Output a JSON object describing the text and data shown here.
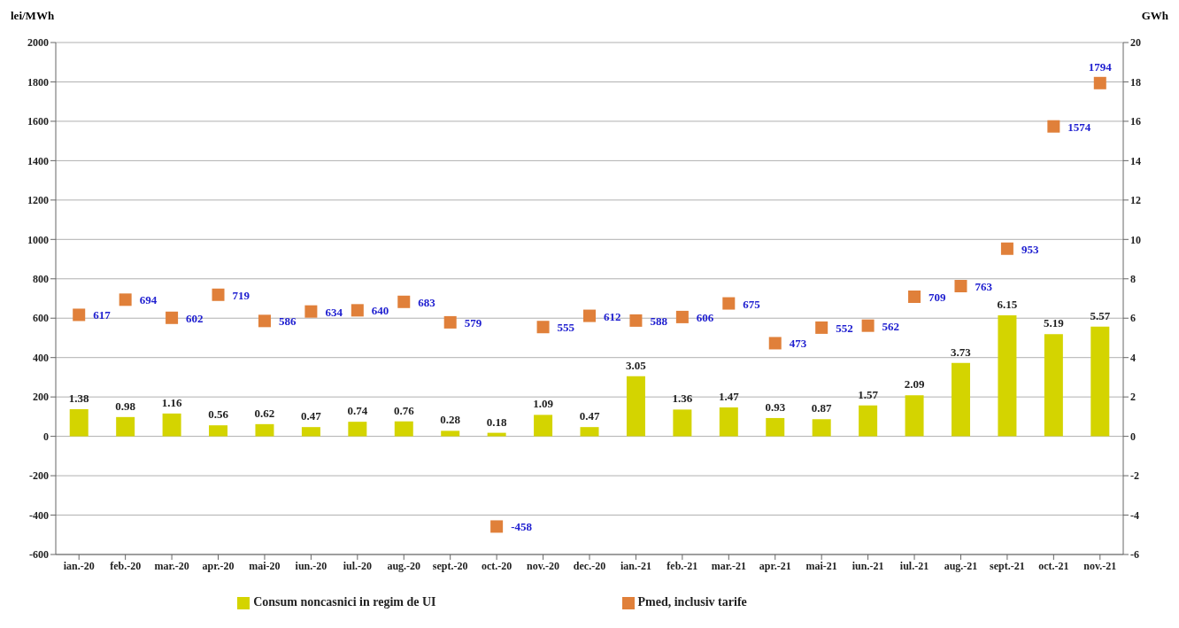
{
  "chart_data": {
    "type": "bar",
    "ylabel": "lei/MWh",
    "y2label": "GWh",
    "categories": [
      "ian.-20",
      "feb.-20",
      "mar.-20",
      "apr.-20",
      "mai-20",
      "iun.-20",
      "iul.-20",
      "aug.-20",
      "sept.-20",
      "oct.-20",
      "nov.-20",
      "dec.-20",
      "ian.-21",
      "feb.-21",
      "mar.-21",
      "apr.-21",
      "mai-21",
      "iun.-21",
      "iul.-21",
      "aug.-21",
      "sept.-21",
      "oct.-21",
      "nov.-21"
    ],
    "series": [
      {
        "name": "Consum noncasnici in regim de UI",
        "axis": "y2",
        "color": "#d4d400",
        "values": [
          1.38,
          0.98,
          1.16,
          0.56,
          0.62,
          0.47,
          0.74,
          0.76,
          0.28,
          0.18,
          1.09,
          0.47,
          3.05,
          1.36,
          1.47,
          0.93,
          0.87,
          1.57,
          2.09,
          3.73,
          6.15,
          5.19,
          5.57
        ]
      },
      {
        "name": "Pmed, inclusiv tarife",
        "type": "scatter",
        "color": "#e0803a",
        "marker": "square",
        "values": [
          617,
          694,
          602,
          719,
          586,
          634,
          640,
          683,
          579,
          -458,
          555,
          612,
          588,
          606,
          675,
          473,
          552,
          562,
          709,
          763,
          953,
          1574,
          1794
        ]
      }
    ],
    "ylim": [
      -600,
      2000
    ],
    "yticks": [
      -600,
      -400,
      -200,
      0,
      200,
      400,
      600,
      800,
      1000,
      1200,
      1400,
      1600,
      1800,
      2000
    ],
    "y2lim": [
      -6,
      20
    ],
    "y2ticks": [
      -6,
      -4,
      -2,
      0,
      2,
      4,
      6,
      8,
      10,
      12,
      14,
      16,
      18,
      20
    ],
    "data_labels": true,
    "grid": "y",
    "legend": "bottom"
  }
}
